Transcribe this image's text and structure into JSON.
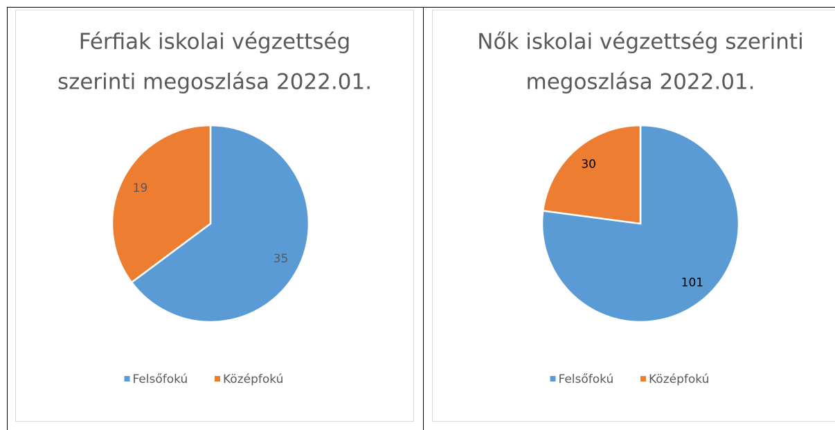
{
  "chart_data": [
    {
      "type": "pie",
      "title": [
        "Férfiak iskolai végzettség",
        "szerinti megoszlása 2022.01."
      ],
      "categories": [
        "Felsőfokú",
        "Középfokú"
      ],
      "values": [
        35,
        19
      ],
      "colors": [
        "#5b9bd5",
        "#ed7d31"
      ],
      "label_color": "#595959",
      "legend": "bottom"
    },
    {
      "type": "pie",
      "title": [
        "Nők iskolai végzettség szerinti",
        "megoszlása 2022.01."
      ],
      "categories": [
        "Felsőfokú",
        "Középfokú"
      ],
      "values": [
        101,
        30
      ],
      "colors": [
        "#5b9bd5",
        "#ed7d31"
      ],
      "label_color": "#000000",
      "legend": "bottom"
    }
  ]
}
